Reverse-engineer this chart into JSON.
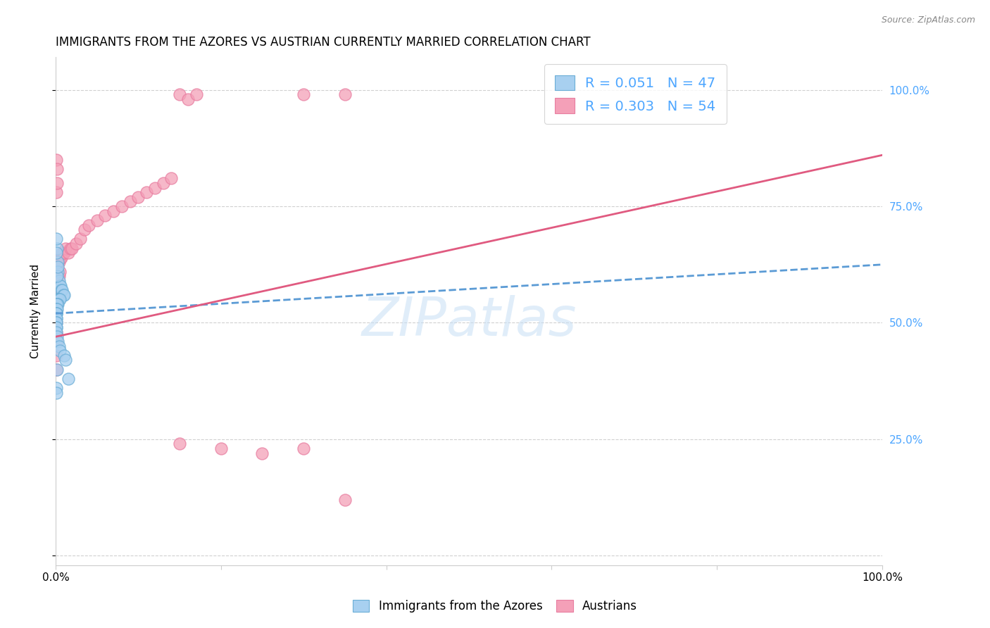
{
  "title": "IMMIGRANTS FROM THE AZORES VS AUSTRIAN CURRENTLY MARRIED CORRELATION CHART",
  "source": "Source: ZipAtlas.com",
  "ylabel": "Currently Married",
  "right_yticks": [
    "100.0%",
    "75.0%",
    "50.0%",
    "25.0%"
  ],
  "right_ytick_vals": [
    1.0,
    0.75,
    0.5,
    0.25
  ],
  "blue_color": "#a8d0f0",
  "pink_color": "#f4a0b8",
  "blue_edge_color": "#6baed6",
  "pink_edge_color": "#e87da0",
  "blue_line_color": "#5b9bd5",
  "pink_line_color": "#e05a80",
  "right_axis_color": "#4da6ff",
  "watermark": "ZIPatlas",
  "azores_x": [
    0.002,
    0.003,
    0.003,
    0.004,
    0.005,
    0.006,
    0.007,
    0.008,
    0.009,
    0.01,
    0.001,
    0.002,
    0.003,
    0.004,
    0.005,
    0.001,
    0.002,
    0.003,
    0.001,
    0.002,
    0.001,
    0.001,
    0.002,
    0.001,
    0.001,
    0.001,
    0.001,
    0.001,
    0.001,
    0.001,
    0.001,
    0.001,
    0.001,
    0.002,
    0.003,
    0.004,
    0.005,
    0.01,
    0.012,
    0.015,
    0.001,
    0.002,
    0.003,
    0.001,
    0.002,
    0.001,
    0.001
  ],
  "azores_y": [
    0.66,
    0.63,
    0.61,
    0.59,
    0.58,
    0.58,
    0.57,
    0.57,
    0.56,
    0.56,
    0.55,
    0.55,
    0.55,
    0.55,
    0.55,
    0.54,
    0.54,
    0.54,
    0.54,
    0.54,
    0.53,
    0.53,
    0.53,
    0.52,
    0.52,
    0.52,
    0.51,
    0.51,
    0.5,
    0.5,
    0.49,
    0.49,
    0.48,
    0.47,
    0.46,
    0.45,
    0.44,
    0.43,
    0.42,
    0.38,
    0.65,
    0.6,
    0.62,
    0.68,
    0.4,
    0.36,
    0.35
  ],
  "austrians_x": [
    0.001,
    0.002,
    0.003,
    0.004,
    0.005,
    0.006,
    0.007,
    0.008,
    0.009,
    0.01,
    0.012,
    0.015,
    0.018,
    0.02,
    0.025,
    0.03,
    0.035,
    0.04,
    0.05,
    0.06,
    0.07,
    0.08,
    0.09,
    0.1,
    0.11,
    0.12,
    0.13,
    0.14,
    0.15,
    0.16,
    0.17,
    0.3,
    0.35,
    0.001,
    0.002,
    0.003,
    0.004,
    0.005,
    0.001,
    0.002,
    0.15,
    0.2,
    0.25,
    0.3,
    0.35,
    0.001,
    0.002,
    0.001,
    0.002,
    0.001,
    0.001,
    0.001,
    0.001,
    0.001
  ],
  "austrians_y": [
    0.63,
    0.63,
    0.63,
    0.63,
    0.64,
    0.64,
    0.64,
    0.65,
    0.65,
    0.65,
    0.66,
    0.65,
    0.66,
    0.66,
    0.67,
    0.68,
    0.7,
    0.71,
    0.72,
    0.73,
    0.74,
    0.75,
    0.76,
    0.77,
    0.78,
    0.79,
    0.8,
    0.81,
    0.99,
    0.98,
    0.99,
    0.99,
    0.99,
    0.55,
    0.57,
    0.58,
    0.6,
    0.61,
    0.78,
    0.8,
    0.24,
    0.23,
    0.22,
    0.23,
    0.12,
    0.6,
    0.63,
    0.85,
    0.83,
    0.5,
    0.48,
    0.46,
    0.43,
    0.4
  ],
  "xlim": [
    0.0,
    1.0
  ],
  "ylim": [
    -0.02,
    1.07
  ],
  "blue_trend_x": [
    0.0,
    1.0
  ],
  "blue_trend_y": [
    0.52,
    0.625
  ],
  "pink_trend_x": [
    0.0,
    1.0
  ],
  "pink_trend_y": [
    0.47,
    0.86
  ]
}
